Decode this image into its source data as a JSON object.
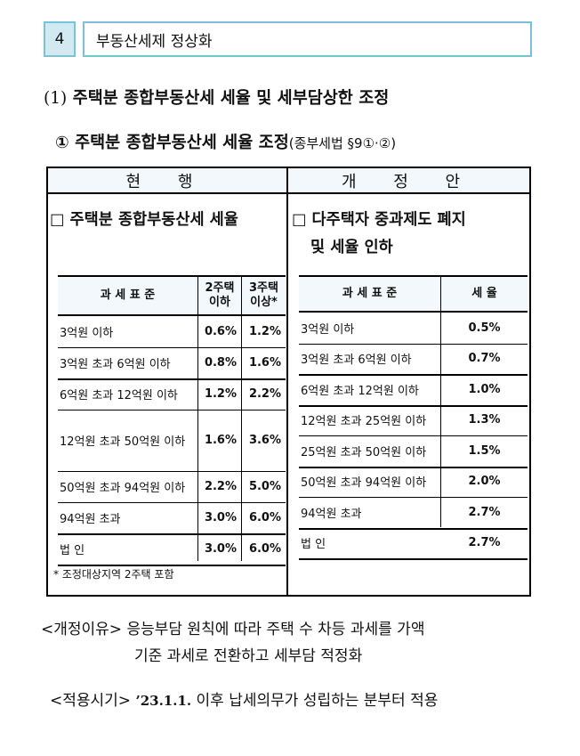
{
  "section": {
    "number": "4",
    "title": "부동산세제 정상화"
  },
  "heading1": {
    "number": "(1)",
    "text": "주택분 종합부동산세 세율 및 세부담상한 조정"
  },
  "heading2": {
    "marker": "①",
    "text": "주택분 종합부동산세 세율 조정",
    "ref": "(종부세법 §9①·②)"
  },
  "current": {
    "column_title": "현 행",
    "box": "□",
    "heading": "주택분 종합부동산세 세율",
    "table": {
      "headers": [
        "과 세 표 준",
        "2주택 이하",
        "3주택 이상*"
      ],
      "rows": [
        {
          "base": "3억원 이하",
          "two": "0.6%",
          "three": "1.2%"
        },
        {
          "base": "3억원 초과 6억원 이하",
          "two": "0.8%",
          "three": "1.6%"
        },
        {
          "base": "6억원 초과 12억원 이하",
          "two": "1.2%",
          "three": "2.2%"
        },
        {
          "base": "12억원 초과 50억원 이하",
          "two": "1.6%",
          "three": "3.6%"
        },
        {
          "base": "50억원 초과 94억원 이하",
          "two": "2.2%",
          "three": "5.0%"
        },
        {
          "base": "94억원 초과",
          "two": "3.0%",
          "three": "6.0%"
        },
        {
          "base": "법 인",
          "two": "3.0%",
          "three": "6.0%"
        }
      ]
    },
    "note": "* 조정대상지역 2주택 포함"
  },
  "proposed": {
    "column_title": "개 정 안",
    "box": "□",
    "heading_line1": "다주택자 중과제도 폐지",
    "heading_line2": "및 세율 인하",
    "table": {
      "headers": [
        "과 세 표 준",
        "세 율"
      ],
      "rows": [
        {
          "base": "3억원 이하",
          "rate": "0.5%"
        },
        {
          "base": "3억원 초과 6억원 이하",
          "rate": "0.7%"
        },
        {
          "base": "6억원 초과 12억원 이하",
          "rate": "1.0%"
        },
        {
          "base": "12억원 초과 25억원 이하",
          "rate": "1.3%"
        },
        {
          "base": "25억원 초과 50억원 이하",
          "rate": "1.5%"
        },
        {
          "base": "50억원 초과 94억원 이하",
          "rate": "2.0%"
        },
        {
          "base": "94억원 초과",
          "rate": "2.7%"
        },
        {
          "base": "법 인",
          "rate": "2.7%"
        }
      ]
    }
  },
  "reason": {
    "label": "<개정이유>",
    "line1": "응능부담 원칙에 따라 주택 수 차등 과세를 가액",
    "line2": "기준 과세로 전환하고 세부담 적정화"
  },
  "apply": {
    "label": "<적용시기>",
    "date": "’23.1.1.",
    "text": "이후 납세의무가 성립하는 분부터 적용"
  }
}
